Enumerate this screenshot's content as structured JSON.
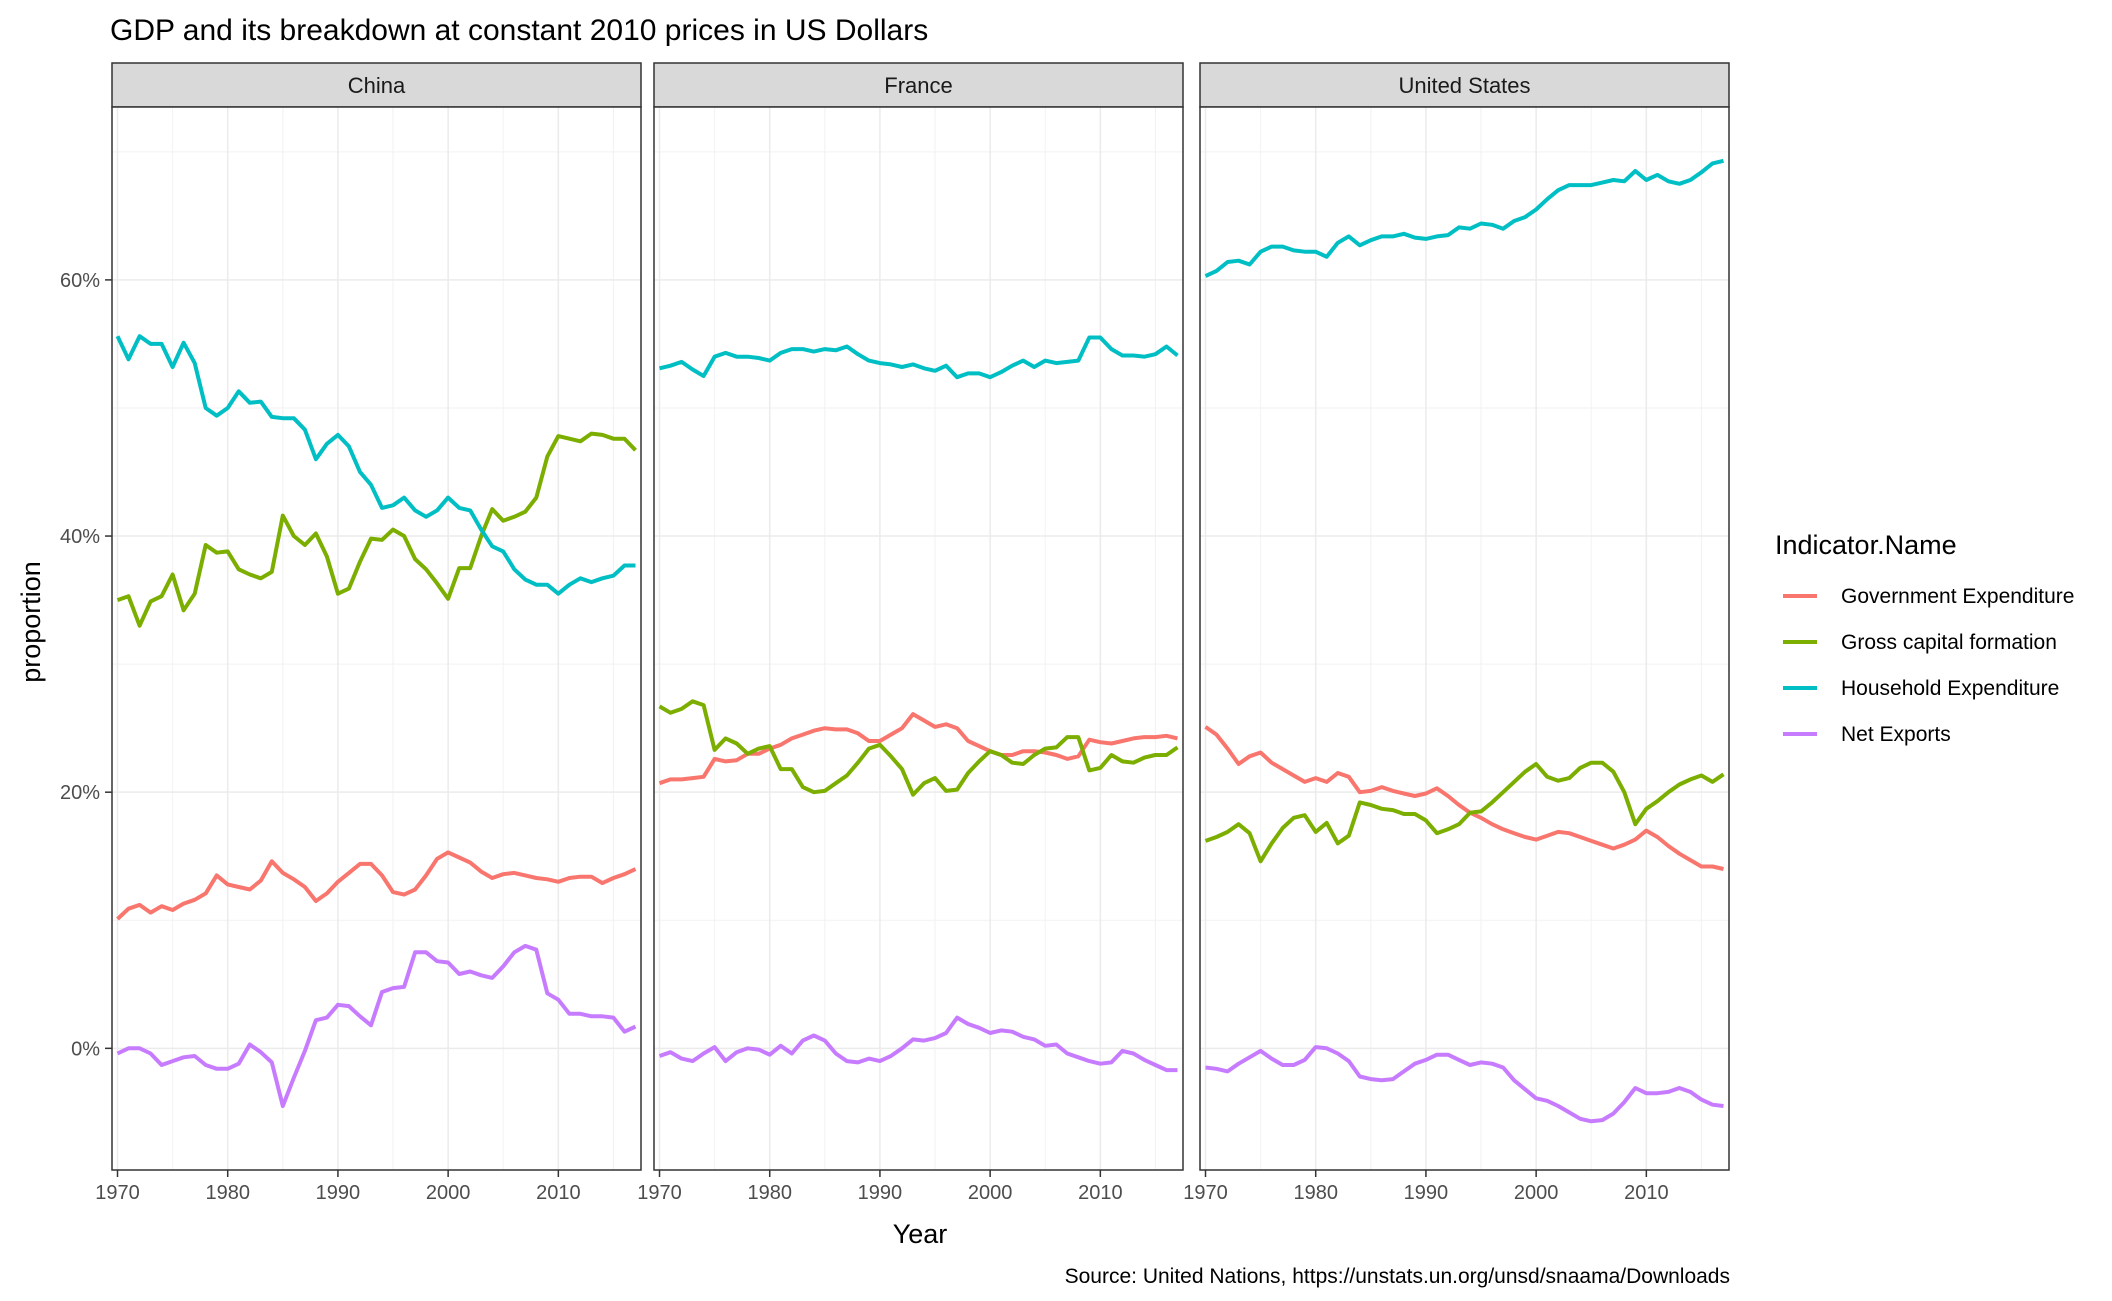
{
  "chart_data": {
    "type": "line",
    "title": "GDP and its breakdown at constant 2010 prices in US Dollars",
    "caption": "Source: United Nations, https://unstats.un.org/unsd/snaama/Downloads",
    "xlabel": "Year",
    "ylabel": "proportion",
    "xlim": [
      1969.5,
      2017.5
    ],
    "ylim": [
      -0.095,
      0.735
    ],
    "x_ticks": [
      1970,
      1980,
      1990,
      2000,
      2010
    ],
    "x_tick_labels": [
      "1970",
      "1980",
      "1990",
      "2000",
      "2010"
    ],
    "y_ticks": [
      0,
      0.2,
      0.4,
      0.6
    ],
    "y_tick_labels": [
      "0%",
      "20%",
      "40%",
      "60%"
    ],
    "grid": true,
    "legend": {
      "title": "Indicator.Name",
      "position": "right",
      "entries": [
        "Government Expenditure",
        "Gross capital formation",
        "Household Expenditure",
        "Net Exports"
      ]
    },
    "colors": {
      "Government Expenditure": "#F8766D",
      "Gross capital formation": "#7CAE00",
      "Household Expenditure": "#00BFC4",
      "Net Exports": "#C77CFF"
    },
    "x_start_year": 1970,
    "facets": [
      {
        "name": "China",
        "series": [
          {
            "name": "Government Expenditure",
            "values": [
              0.101,
              0.109,
              0.112,
              0.106,
              0.111,
              0.108,
              0.113,
              0.116,
              0.121,
              0.135,
              0.128,
              0.126,
              0.124,
              0.131,
              0.146,
              0.137,
              0.132,
              0.126,
              0.115,
              0.121,
              0.13,
              0.137,
              0.144,
              0.144,
              0.135,
              0.122,
              0.12,
              0.124,
              0.135,
              0.148,
              0.153,
              0.149,
              0.145,
              0.138,
              0.133,
              0.136,
              0.137,
              0.135,
              0.133,
              0.132,
              0.13,
              0.133,
              0.134,
              0.134,
              0.129,
              0.133,
              0.136,
              0.14
            ]
          },
          {
            "name": "Gross capital formation",
            "values": [
              0.35,
              0.353,
              0.33,
              0.349,
              0.353,
              0.37,
              0.342,
              0.355,
              0.393,
              0.387,
              0.388,
              0.374,
              0.37,
              0.367,
              0.372,
              0.416,
              0.4,
              0.393,
              0.402,
              0.384,
              0.355,
              0.359,
              0.38,
              0.398,
              0.397,
              0.405,
              0.4,
              0.382,
              0.374,
              0.363,
              0.351,
              0.375,
              0.375,
              0.4,
              0.421,
              0.412,
              0.415,
              0.419,
              0.43,
              0.462,
              0.478,
              0.476,
              0.474,
              0.48,
              0.479,
              0.476,
              0.476,
              0.467
            ]
          },
          {
            "name": "Household Expenditure",
            "values": [
              0.556,
              0.538,
              0.556,
              0.55,
              0.55,
              0.532,
              0.551,
              0.535,
              0.5,
              0.494,
              0.5,
              0.513,
              0.504,
              0.505,
              0.493,
              0.492,
              0.492,
              0.483,
              0.46,
              0.472,
              0.479,
              0.47,
              0.45,
              0.44,
              0.422,
              0.424,
              0.43,
              0.42,
              0.415,
              0.42,
              0.43,
              0.422,
              0.42,
              0.405,
              0.392,
              0.388,
              0.374,
              0.366,
              0.362,
              0.362,
              0.355,
              0.362,
              0.367,
              0.364,
              0.367,
              0.369,
              0.377,
              0.377
            ]
          },
          {
            "name": "Net Exports",
            "values": [
              -0.004,
              0.0,
              0.0,
              -0.004,
              -0.013,
              -0.01,
              -0.007,
              -0.006,
              -0.013,
              -0.016,
              -0.016,
              -0.012,
              0.003,
              -0.003,
              -0.011,
              -0.045,
              -0.023,
              -0.002,
              0.022,
              0.024,
              0.034,
              0.033,
              0.025,
              0.018,
              0.044,
              0.047,
              0.048,
              0.075,
              0.075,
              0.068,
              0.067,
              0.058,
              0.06,
              0.057,
              0.055,
              0.064,
              0.075,
              0.08,
              0.077,
              0.043,
              0.038,
              0.027,
              0.027,
              0.025,
              0.025,
              0.024,
              0.013,
              0.017
            ]
          }
        ]
      },
      {
        "name": "France",
        "series": [
          {
            "name": "Government Expenditure",
            "values": [
              0.207,
              0.21,
              0.21,
              0.211,
              0.212,
              0.226,
              0.224,
              0.225,
              0.23,
              0.23,
              0.234,
              0.237,
              0.242,
              0.245,
              0.248,
              0.25,
              0.249,
              0.249,
              0.246,
              0.24,
              0.24,
              0.245,
              0.25,
              0.261,
              0.256,
              0.251,
              0.253,
              0.25,
              0.24,
              0.236,
              0.232,
              0.229,
              0.229,
              0.232,
              0.232,
              0.231,
              0.229,
              0.226,
              0.228,
              0.241,
              0.239,
              0.238,
              0.24,
              0.242,
              0.243,
              0.243,
              0.244,
              0.242
            ]
          },
          {
            "name": "Gross capital formation",
            "values": [
              0.267,
              0.262,
              0.265,
              0.271,
              0.268,
              0.233,
              0.242,
              0.238,
              0.23,
              0.234,
              0.236,
              0.218,
              0.218,
              0.204,
              0.2,
              0.201,
              0.207,
              0.213,
              0.223,
              0.234,
              0.237,
              0.228,
              0.218,
              0.198,
              0.207,
              0.211,
              0.201,
              0.202,
              0.215,
              0.224,
              0.232,
              0.229,
              0.223,
              0.222,
              0.229,
              0.234,
              0.235,
              0.243,
              0.243,
              0.217,
              0.219,
              0.229,
              0.224,
              0.223,
              0.227,
              0.229,
              0.229,
              0.235
            ]
          },
          {
            "name": "Household Expenditure",
            "values": [
              0.531,
              0.533,
              0.536,
              0.53,
              0.525,
              0.54,
              0.543,
              0.54,
              0.54,
              0.539,
              0.537,
              0.543,
              0.546,
              0.546,
              0.544,
              0.546,
              0.545,
              0.548,
              0.542,
              0.537,
              0.535,
              0.534,
              0.532,
              0.534,
              0.531,
              0.529,
              0.533,
              0.524,
              0.527,
              0.527,
              0.524,
              0.528,
              0.533,
              0.537,
              0.532,
              0.537,
              0.535,
              0.536,
              0.537,
              0.555,
              0.555,
              0.546,
              0.541,
              0.541,
              0.54,
              0.542,
              0.548,
              0.541
            ]
          },
          {
            "name": "Net Exports",
            "values": [
              -0.006,
              -0.003,
              -0.008,
              -0.01,
              -0.004,
              0.001,
              -0.01,
              -0.003,
              0.0,
              -0.001,
              -0.005,
              0.002,
              -0.004,
              0.006,
              0.01,
              0.006,
              -0.004,
              -0.01,
              -0.011,
              -0.008,
              -0.01,
              -0.006,
              0.0,
              0.007,
              0.006,
              0.008,
              0.012,
              0.024,
              0.019,
              0.016,
              0.012,
              0.014,
              0.013,
              0.009,
              0.007,
              0.002,
              0.003,
              -0.004,
              -0.007,
              -0.01,
              -0.012,
              -0.011,
              -0.002,
              -0.004,
              -0.009,
              -0.013,
              -0.017,
              -0.017
            ]
          }
        ]
      },
      {
        "name": "United States",
        "series": [
          {
            "name": "Government Expenditure",
            "values": [
              0.251,
              0.245,
              0.234,
              0.222,
              0.228,
              0.231,
              0.223,
              0.218,
              0.213,
              0.208,
              0.211,
              0.208,
              0.215,
              0.212,
              0.2,
              0.201,
              0.204,
              0.201,
              0.199,
              0.197,
              0.199,
              0.203,
              0.197,
              0.19,
              0.184,
              0.18,
              0.175,
              0.171,
              0.168,
              0.165,
              0.163,
              0.166,
              0.169,
              0.168,
              0.165,
              0.162,
              0.159,
              0.156,
              0.159,
              0.163,
              0.17,
              0.165,
              0.158,
              0.152,
              0.147,
              0.142,
              0.142,
              0.14
            ]
          },
          {
            "name": "Gross capital formation",
            "values": [
              0.162,
              0.165,
              0.169,
              0.175,
              0.168,
              0.146,
              0.16,
              0.172,
              0.18,
              0.182,
              0.169,
              0.176,
              0.16,
              0.166,
              0.192,
              0.19,
              0.187,
              0.186,
              0.183,
              0.183,
              0.178,
              0.168,
              0.171,
              0.175,
              0.184,
              0.185,
              0.192,
              0.2,
              0.208,
              0.216,
              0.222,
              0.212,
              0.209,
              0.211,
              0.219,
              0.223,
              0.223,
              0.216,
              0.2,
              0.175,
              0.187,
              0.193,
              0.2,
              0.206,
              0.21,
              0.213,
              0.208,
              0.214
            ]
          },
          {
            "name": "Household Expenditure",
            "values": [
              0.603,
              0.607,
              0.614,
              0.615,
              0.612,
              0.622,
              0.626,
              0.626,
              0.623,
              0.622,
              0.622,
              0.618,
              0.629,
              0.634,
              0.627,
              0.631,
              0.634,
              0.634,
              0.636,
              0.633,
              0.632,
              0.634,
              0.635,
              0.641,
              0.64,
              0.644,
              0.643,
              0.64,
              0.646,
              0.649,
              0.655,
              0.663,
              0.67,
              0.674,
              0.674,
              0.674,
              0.676,
              0.678,
              0.677,
              0.685,
              0.678,
              0.682,
              0.677,
              0.675,
              0.678,
              0.684,
              0.691,
              0.693
            ]
          },
          {
            "name": "Net Exports",
            "values": [
              -0.015,
              -0.016,
              -0.018,
              -0.012,
              -0.007,
              -0.002,
              -0.008,
              -0.013,
              -0.013,
              -0.009,
              0.001,
              0.0,
              -0.004,
              -0.01,
              -0.022,
              -0.024,
              -0.025,
              -0.024,
              -0.018,
              -0.012,
              -0.009,
              -0.005,
              -0.005,
              -0.009,
              -0.013,
              -0.011,
              -0.012,
              -0.015,
              -0.025,
              -0.032,
              -0.039,
              -0.041,
              -0.045,
              -0.05,
              -0.055,
              -0.057,
              -0.056,
              -0.051,
              -0.042,
              -0.031,
              -0.035,
              -0.035,
              -0.034,
              -0.031,
              -0.034,
              -0.04,
              -0.044,
              -0.045
            ]
          }
        ]
      }
    ]
  }
}
